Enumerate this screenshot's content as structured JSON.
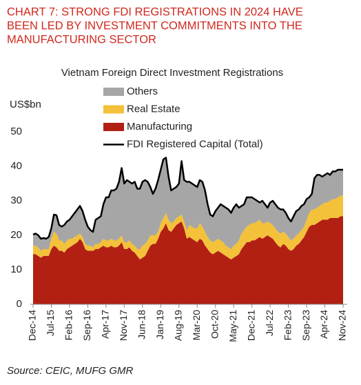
{
  "chart_data": {
    "type": "stacked_area",
    "title": [
      "CHART 7: STRONG FDI REGISTRATIONS IN 2024 HAVE",
      "BEEN LED BY INVESTMENT COMMITMENTS INTO THE",
      "MANUFACTURING SECTOR"
    ],
    "subtitle": "Vietnam Foreign Direct Investment Registrations",
    "y_axis_label": "US$bn",
    "source": "Source: CEIC, MUFG GMR",
    "categories": [
      "Dec-14",
      null,
      null,
      null,
      null,
      null,
      null,
      "Jul-15",
      null,
      null,
      null,
      null,
      null,
      null,
      "Feb-16",
      null,
      null,
      null,
      null,
      null,
      null,
      "Sep-16",
      null,
      null,
      null,
      null,
      null,
      null,
      "Apr-17",
      null,
      null,
      null,
      null,
      null,
      null,
      "Nov-17",
      null,
      null,
      null,
      null,
      null,
      null,
      "Jun-18",
      null,
      null,
      null,
      null,
      null,
      null,
      "Jan-19",
      null,
      null,
      null,
      null,
      null,
      null,
      "Aug-19",
      null,
      null,
      null,
      null,
      null,
      null,
      "Mar-20",
      null,
      null,
      null,
      null,
      null,
      null,
      "Oct-20",
      null,
      null,
      null,
      null,
      null,
      null,
      "May-21",
      null,
      null,
      null,
      null,
      null,
      null,
      "Dec-21",
      null,
      null,
      null,
      null,
      null,
      null,
      "Jul-22",
      null,
      null,
      null,
      null,
      null,
      null,
      "Feb-23",
      null,
      null,
      null,
      null,
      null,
      null,
      "Sep-23",
      null,
      null,
      null,
      null,
      null,
      null,
      "Apr-24",
      null,
      null,
      null,
      null,
      null,
      null,
      "Nov-24"
    ],
    "series": [
      {
        "name": "Manufacturing",
        "type": "area",
        "color": "#b22014",
        "values": [
          14.5,
          14.5,
          14,
          13.5,
          14,
          14,
          14,
          16,
          17,
          16.5,
          15.5,
          15.5,
          15,
          16,
          16.5,
          17,
          17.5,
          18,
          19,
          18,
          16,
          15.5,
          15.5,
          15.5,
          16,
          16,
          16.5,
          17,
          16.5,
          16.5,
          17,
          16.5,
          16.5,
          17,
          18,
          16,
          16,
          16.5,
          15.5,
          15,
          14,
          13,
          13.5,
          14,
          15.5,
          17,
          17.5,
          17.5,
          19,
          21,
          22,
          23.5,
          21.5,
          21,
          22,
          23,
          23.5,
          24,
          22,
          19,
          19.5,
          19,
          18.5,
          18,
          19,
          18.5,
          17,
          16,
          15,
          14.5,
          15,
          15.5,
          15,
          14.5,
          14,
          13.5,
          13,
          13.5,
          14,
          14.5,
          16,
          17,
          18,
          18,
          18.5,
          18.5,
          19,
          19.5,
          19,
          19.5,
          20,
          19.5,
          19,
          18,
          17,
          16.5,
          17.5,
          17,
          16,
          15.5,
          16,
          17,
          17.5,
          18.5,
          19.5,
          21,
          22.5,
          23,
          23,
          23.5,
          24,
          24.5,
          24.5,
          24.5,
          25,
          25,
          25,
          25,
          25.5,
          25.5
        ]
      },
      {
        "name": "Real Estate",
        "type": "area",
        "color": "#f3c13a",
        "values": [
          2.5,
          2.5,
          2.5,
          2,
          2,
          2,
          2,
          3,
          4,
          4,
          3,
          3,
          2.5,
          2.5,
          2.5,
          2,
          2,
          2,
          1.5,
          1.5,
          1.5,
          1.5,
          1.5,
          1,
          1.5,
          1.5,
          1.5,
          2,
          2,
          2,
          2,
          2,
          2,
          2,
          2,
          2,
          2,
          2,
          2,
          2,
          2,
          3,
          3.5,
          3.5,
          3,
          3,
          2.5,
          2.5,
          2,
          2.5,
          3,
          3,
          3,
          2.5,
          2,
          2,
          2,
          2,
          2,
          2.5,
          3.5,
          3.5,
          3.5,
          4,
          4.5,
          4,
          4,
          3.5,
          3.5,
          3.5,
          3.5,
          3.5,
          3.5,
          3.5,
          3,
          3,
          3,
          3.5,
          3.5,
          4,
          4.5,
          4.5,
          4.5,
          5,
          5,
          5,
          5,
          5,
          4.5,
          4,
          4,
          4,
          4,
          4,
          4,
          4,
          3.5,
          3.5,
          3.5,
          3,
          3,
          3,
          3,
          3,
          3,
          3.5,
          4,
          4.5,
          4.5,
          4.5,
          4.5,
          4.5,
          5,
          5,
          5,
          5.5,
          5.5,
          6,
          6,
          6
        ]
      },
      {
        "name": "Others",
        "type": "area",
        "color": "#a6a6a6",
        "values": [
          3.2,
          3.5,
          3.5,
          3.5,
          3.2,
          3,
          3.5,
          3,
          5,
          5.3,
          4.5,
          4,
          5.5,
          5.5,
          5.5,
          6.5,
          7,
          7.5,
          8,
          7.5,
          7,
          5.5,
          4.5,
          4.5,
          7,
          7.5,
          7.5,
          10,
          12.5,
          12.5,
          14,
          14.5,
          15,
          16.5,
          19.5,
          17,
          18,
          17,
          17.5,
          18.5,
          17.5,
          17.5,
          18.5,
          18.5,
          17,
          14,
          12,
          13.5,
          15,
          15.5,
          17,
          16,
          12.5,
          9.5,
          9.5,
          9,
          9.5,
          15.5,
          12,
          14,
          12.5,
          12.5,
          12.5,
          12,
          12.5,
          13,
          12,
          9.5,
          7.5,
          7.5,
          8.5,
          9,
          10.5,
          10.5,
          11,
          11,
          10.5,
          11,
          11.5,
          9.5,
          8,
          7.5,
          8.5,
          8,
          7.5,
          7,
          6,
          5,
          6.5,
          5.5,
          4,
          6,
          7,
          7,
          7,
          7,
          6.5,
          6,
          5.5,
          5.5,
          6.5,
          7,
          7,
          7,
          6.5,
          6,
          4.5,
          4.5,
          9,
          9.5,
          9,
          8,
          8,
          8.5,
          7.5,
          8,
          8,
          8,
          7.5,
          7.5
        ]
      },
      {
        "name": "FDI Registered Capital (Total)",
        "type": "line",
        "color": "#000000",
        "values": [
          20.2,
          20.5,
          20,
          19,
          19.2,
          19,
          19.5,
          22,
          26,
          25.8,
          23,
          22.5,
          23,
          24,
          24.5,
          25.5,
          26.5,
          27.5,
          28.5,
          27,
          24.5,
          22.5,
          21.5,
          21,
          24.5,
          25,
          25.5,
          29,
          31,
          31,
          33,
          33,
          33.5,
          35.5,
          39.5,
          35,
          36,
          35.5,
          35,
          35.5,
          33.5,
          33.5,
          35.5,
          36,
          35.5,
          34,
          32,
          33.5,
          36,
          39,
          42,
          42.5,
          37,
          33,
          33.5,
          34,
          35,
          41.5,
          36,
          35.5,
          35.5,
          35,
          34.5,
          34,
          36,
          35.5,
          33,
          29,
          26,
          25.5,
          27,
          28,
          29,
          28.5,
          28,
          27.5,
          26.5,
          28,
          29,
          28,
          28.5,
          29,
          31,
          31,
          31,
          30.5,
          30,
          29.5,
          30,
          29,
          28,
          29.5,
          30,
          29,
          28,
          27.5,
          27.5,
          26.5,
          25,
          24,
          25.5,
          27,
          27.5,
          28.5,
          29,
          30.5,
          31,
          32,
          36.5,
          37.5,
          37.5,
          37,
          37.5,
          38,
          37.5,
          38.5,
          38.5,
          39,
          39,
          39
        ]
      }
    ],
    "ylim": [
      0,
      50
    ],
    "yticks": [
      0,
      10,
      20,
      30,
      40,
      50
    ],
    "grid": false
  }
}
